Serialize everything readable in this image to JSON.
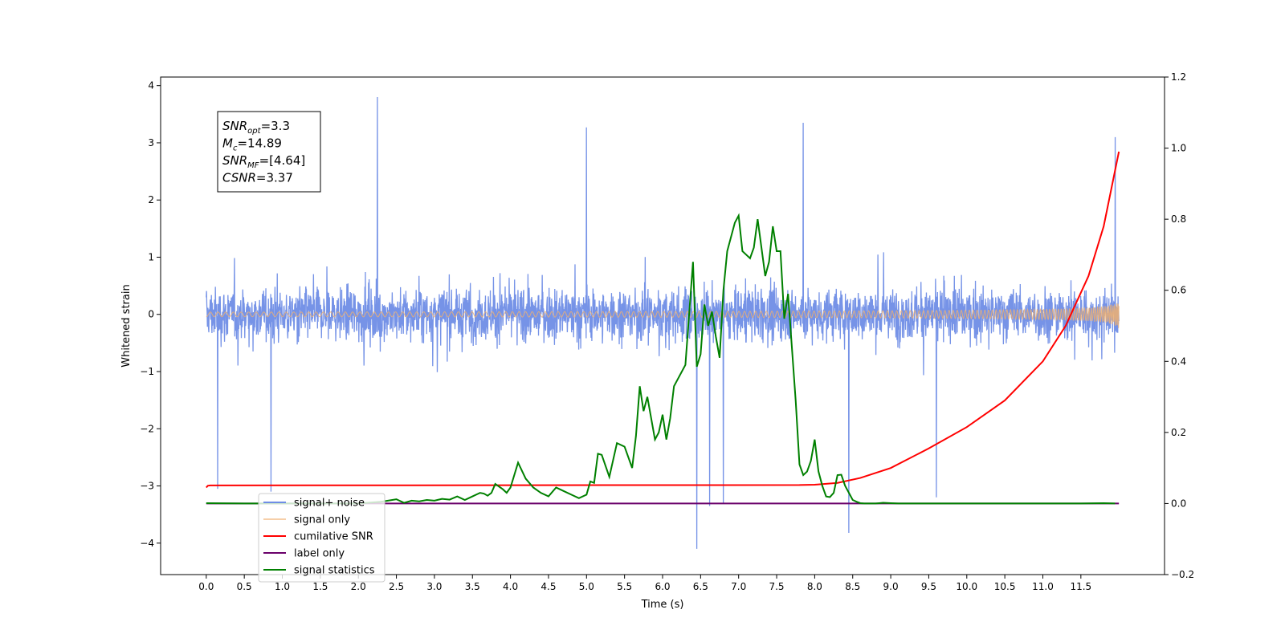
{
  "chart_data": {
    "type": "line",
    "xlabel": "Time (s)",
    "ylabel": "Whitened strain",
    "xlim": [
      -0.6,
      12.6
    ],
    "ylim": [
      -4.55,
      4.15
    ],
    "y2lim": [
      -0.2,
      1.2
    ],
    "xticks": [
      0.0,
      0.5,
      1.0,
      1.5,
      2.0,
      2.5,
      3.0,
      3.5,
      4.0,
      4.5,
      5.0,
      5.5,
      6.0,
      6.5,
      7.0,
      7.5,
      8.0,
      8.5,
      9.0,
      9.5,
      10.0,
      10.5,
      11.0,
      11.5
    ],
    "xtick_labels": [
      "0.0",
      "0.5",
      "1.0",
      "1.5",
      "2.0",
      "2.5",
      "3.0",
      "3.5",
      "4.0",
      "4.5",
      "5.0",
      "5.5",
      "6.0",
      "6.5",
      "7.0",
      "7.5",
      "8.0",
      "8.5",
      "9.0",
      "9.5",
      "10.0",
      "10.5",
      "11.0",
      "11.5"
    ],
    "yticks": [
      -4,
      -3,
      -2,
      -1,
      0,
      1,
      2,
      3,
      4
    ],
    "ytick_labels": [
      "−4",
      "−3",
      "−2",
      "−1",
      "0",
      "1",
      "2",
      "3",
      "4"
    ],
    "y2ticks": [
      -0.2,
      0.0,
      0.2,
      0.4,
      0.6,
      0.8,
      1.0,
      1.2
    ],
    "y2tick_labels": [
      "−0.2",
      "0.0",
      "0.2",
      "0.4",
      "0.6",
      "0.8",
      "1.0",
      "1.2"
    ],
    "legend_position": "lower-left",
    "annotation": {
      "lines": [
        {
          "main": "SNR",
          "sub": "opt",
          "rest": "=3.3"
        },
        {
          "main": "M",
          "sub": "c",
          "rest": "=14.89"
        },
        {
          "main": "SNR",
          "sub": "MF",
          "rest": "=[4.64]"
        },
        {
          "main": "CSNR",
          "sub": "",
          "rest": "=3.37"
        }
      ]
    },
    "series": [
      {
        "name": "signal+ noise",
        "axis": "left",
        "color": "#6f8de6",
        "kind": "noise",
        "x_range": [
          0.0,
          12.0
        ],
        "band": [
          -2.0,
          2.1
        ],
        "spikes": [
          [
            2.25,
            3.8
          ],
          [
            5.0,
            3.27
          ],
          [
            7.85,
            3.35
          ],
          [
            11.95,
            3.1
          ],
          [
            6.45,
            -4.1
          ],
          [
            8.45,
            -3.82
          ],
          [
            6.62,
            -3.35
          ],
          [
            6.8,
            -3.3
          ],
          [
            9.6,
            -3.2
          ],
          [
            0.15,
            -3.05
          ],
          [
            0.85,
            -3.1
          ]
        ]
      },
      {
        "name": "signal only",
        "axis": "left",
        "color": "#f0b070",
        "kind": "chirp",
        "x_range": [
          0.0,
          12.0
        ],
        "amplitude_end": 0.25
      },
      {
        "name": "cumilative SNR",
        "axis": "right",
        "color": "#ff0000",
        "x": [
          0.0,
          0.02,
          0.05,
          7.8,
          8.0,
          8.3,
          8.6,
          9.0,
          9.5,
          10.0,
          10.5,
          11.0,
          11.3,
          11.6,
          11.8,
          12.0
        ],
        "y": [
          0.045,
          0.05,
          0.051,
          0.052,
          0.053,
          0.058,
          0.072,
          0.1,
          0.155,
          0.215,
          0.29,
          0.4,
          0.5,
          0.64,
          0.78,
          0.99
        ]
      },
      {
        "name": "label only",
        "axis": "right",
        "color": "#6a006a",
        "x": [
          0.0,
          12.0
        ],
        "y": [
          0.0,
          0.0
        ]
      },
      {
        "name": "signal statistics",
        "axis": "right",
        "color": "#008000",
        "x": [
          0.0,
          0.5,
          1.0,
          1.5,
          2.0,
          2.3,
          2.5,
          2.6,
          2.7,
          2.8,
          2.9,
          3.0,
          3.1,
          3.2,
          3.3,
          3.4,
          3.5,
          3.6,
          3.65,
          3.7,
          3.75,
          3.8,
          3.9,
          3.95,
          4.0,
          4.1,
          4.2,
          4.3,
          4.4,
          4.5,
          4.6,
          4.7,
          4.8,
          4.9,
          5.0,
          5.05,
          5.1,
          5.15,
          5.2,
          5.3,
          5.4,
          5.5,
          5.6,
          5.65,
          5.7,
          5.75,
          5.8,
          5.9,
          5.95,
          6.0,
          6.05,
          6.1,
          6.15,
          6.2,
          6.3,
          6.4,
          6.45,
          6.5,
          6.55,
          6.6,
          6.65,
          6.7,
          6.75,
          6.8,
          6.85,
          6.9,
          6.95,
          7.0,
          7.05,
          7.1,
          7.15,
          7.2,
          7.25,
          7.3,
          7.35,
          7.4,
          7.45,
          7.5,
          7.55,
          7.6,
          7.65,
          7.7,
          7.75,
          7.8,
          7.85,
          7.9,
          7.95,
          8.0,
          8.05,
          8.1,
          8.15,
          8.2,
          8.25,
          8.3,
          8.35,
          8.4,
          8.45,
          8.5,
          8.55,
          8.6,
          8.65,
          8.7,
          8.75,
          8.8,
          8.85,
          8.9,
          9.0,
          9.1,
          9.2,
          9.3,
          9.5,
          10.0,
          10.5,
          11.0,
          11.5,
          11.8,
          11.95
        ],
        "y": [
          0.001,
          0.0,
          0.0,
          0.0,
          0.0,
          0.005,
          0.012,
          0.002,
          0.008,
          0.006,
          0.01,
          0.008,
          0.013,
          0.011,
          0.02,
          0.01,
          0.02,
          0.03,
          0.028,
          0.022,
          0.03,
          0.055,
          0.04,
          0.03,
          0.045,
          0.115,
          0.07,
          0.045,
          0.03,
          0.02,
          0.045,
          0.035,
          0.025,
          0.015,
          0.025,
          0.062,
          0.058,
          0.14,
          0.137,
          0.075,
          0.17,
          0.16,
          0.1,
          0.19,
          0.33,
          0.26,
          0.3,
          0.18,
          0.2,
          0.25,
          0.18,
          0.24,
          0.33,
          0.35,
          0.39,
          0.68,
          0.385,
          0.42,
          0.56,
          0.5,
          0.54,
          0.47,
          0.41,
          0.6,
          0.71,
          0.75,
          0.79,
          0.81,
          0.71,
          0.7,
          0.69,
          0.72,
          0.8,
          0.72,
          0.64,
          0.68,
          0.78,
          0.71,
          0.71,
          0.52,
          0.59,
          0.44,
          0.29,
          0.11,
          0.08,
          0.09,
          0.12,
          0.18,
          0.09,
          0.05,
          0.02,
          0.018,
          0.03,
          0.08,
          0.081,
          0.05,
          0.03,
          0.01,
          0.005,
          0.001,
          0.0,
          0.0,
          0.0,
          0.0,
          0.001,
          0.002,
          0.001,
          0.0,
          0.0,
          0.0,
          0.0,
          0.0,
          0.0,
          0.0,
          0.0,
          0.001,
          0.0
        ]
      }
    ]
  }
}
